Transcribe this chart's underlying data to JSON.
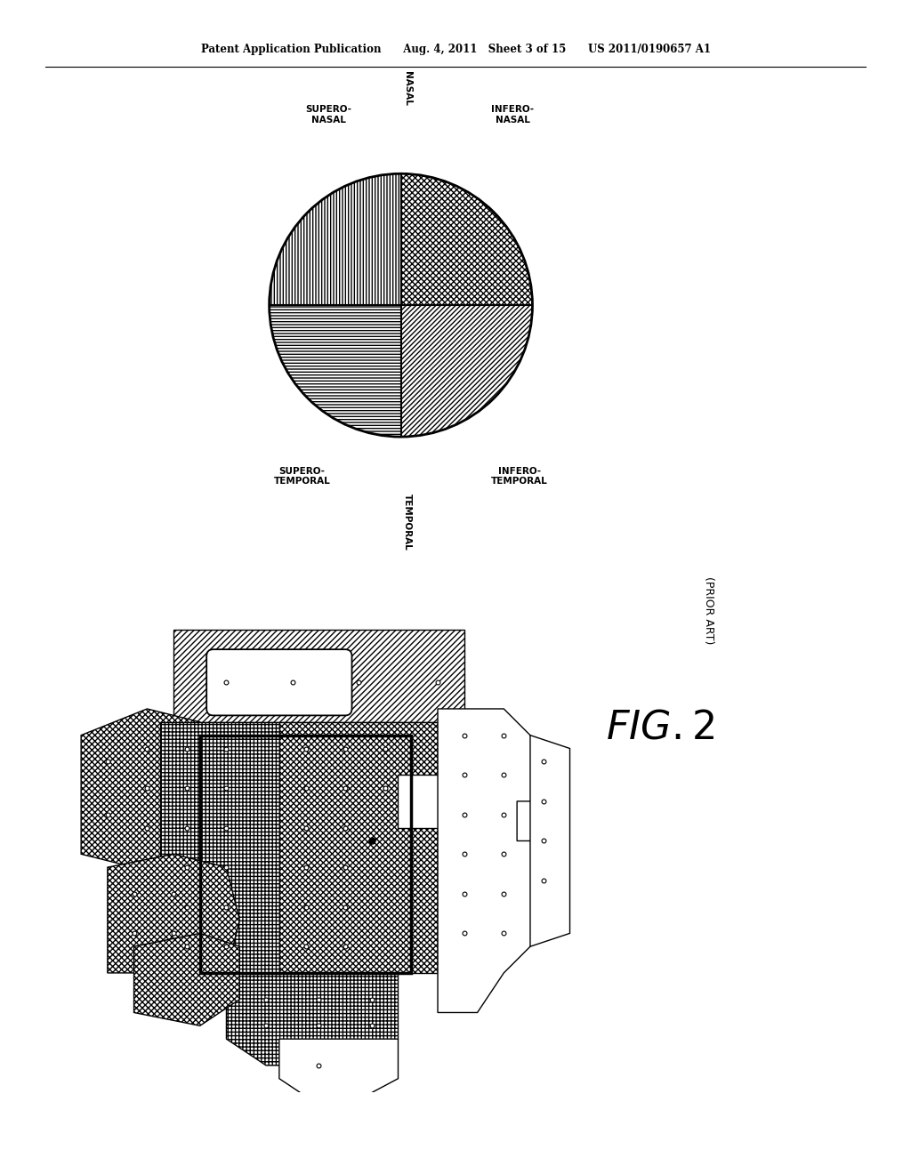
{
  "bg_color": "#ffffff",
  "header": "Patent Application Publication      Aug. 4, 2011   Sheet 3 of 15      US 2011/0190657 A1",
  "fig2_label": "FIG. 2",
  "prior_art": "(PRIOR ART)"
}
